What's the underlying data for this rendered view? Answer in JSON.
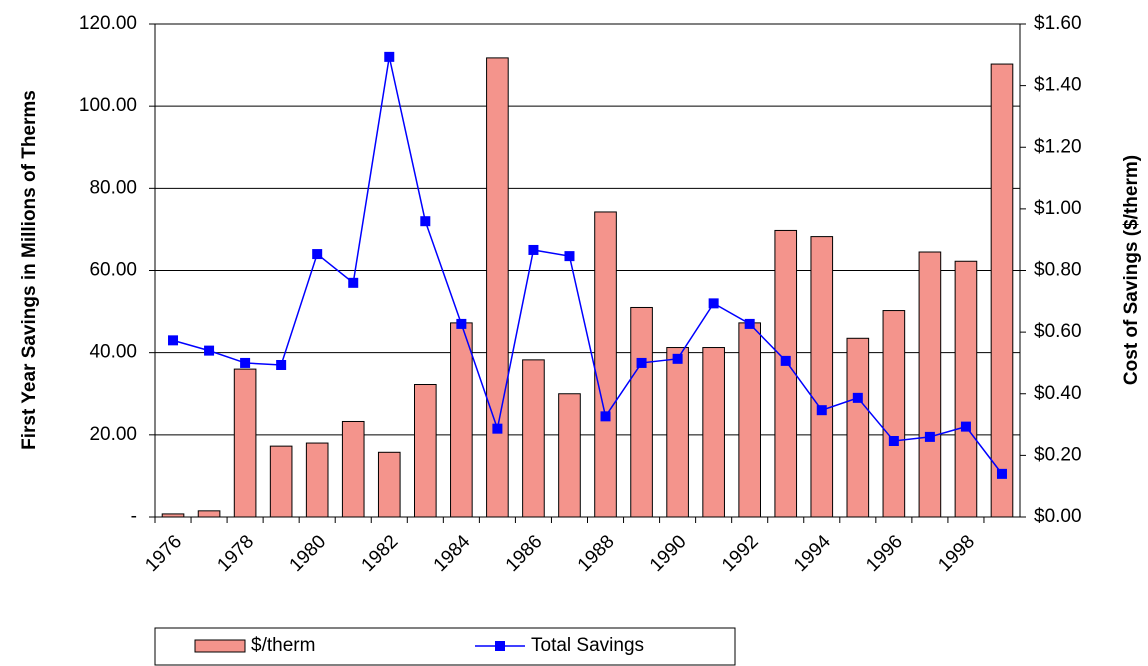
{
  "chart_data": {
    "type": "bar",
    "categories": [
      "1976",
      null,
      "1978",
      null,
      "1980",
      null,
      "1982",
      null,
      "1984",
      null,
      "1986",
      null,
      "1988",
      null,
      "1990",
      null,
      "1992",
      null,
      "1994",
      null,
      "1996",
      null,
      "1998",
      null
    ],
    "y_label": "First Year Savings in Millions of Therms",
    "y2_label": "Cost of Savings ($/therm)",
    "series": [
      {
        "name": "$/therm",
        "type": "bar",
        "axis": "y2",
        "color": "#f4948c",
        "values": [
          0.01,
          0.02,
          0.48,
          0.23,
          0.24,
          0.31,
          0.21,
          0.43,
          0.63,
          1.49,
          0.51,
          0.4,
          0.99,
          0.68,
          0.55,
          0.55,
          0.63,
          0.93,
          0.91,
          0.58,
          0.67,
          0.86,
          0.83,
          1.47
        ]
      },
      {
        "name": "Total Savings",
        "type": "line",
        "axis": "y",
        "color": "#0000ff",
        "values": [
          43,
          40.5,
          37.5,
          37,
          64,
          57,
          112,
          72,
          47,
          21.5,
          65,
          63.5,
          24.5,
          37.5,
          38.5,
          52,
          47,
          38,
          26,
          29,
          18.5,
          19.5,
          22,
          10.5
        ]
      }
    ],
    "ylim": [
      0,
      120
    ],
    "yticks": [
      {
        "value": 0,
        "label": "-"
      },
      {
        "value": 20,
        "label": "20.00"
      },
      {
        "value": 40,
        "label": "40.00"
      },
      {
        "value": 60,
        "label": "60.00"
      },
      {
        "value": 80,
        "label": "80.00"
      },
      {
        "value": 100,
        "label": "100.00"
      },
      {
        "value": 120,
        "label": "120.00"
      }
    ],
    "y2lim": [
      0,
      1.6
    ],
    "y2ticks": [
      {
        "value": 0,
        "label": "$0.00"
      },
      {
        "value": 0.2,
        "label": "$0.20"
      },
      {
        "value": 0.4,
        "label": "$0.40"
      },
      {
        "value": 0.6,
        "label": "$0.60"
      },
      {
        "value": 0.8,
        "label": "$0.80"
      },
      {
        "value": 1.0,
        "label": "$1.00"
      },
      {
        "value": 1.2,
        "label": "$1.20"
      },
      {
        "value": 1.4,
        "label": "$1.40"
      },
      {
        "value": 1.6,
        "label": "$1.60"
      }
    ],
    "grid": true,
    "legend": "bottom"
  }
}
